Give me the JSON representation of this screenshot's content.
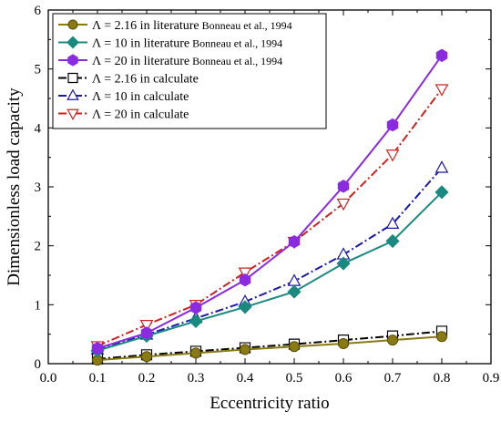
{
  "chart_data": {
    "type": "line",
    "xlabel": "Eccentricity ratio",
    "ylabel": "Dimensionless load capacity",
    "xlim": [
      0.0,
      0.9
    ],
    "ylim": [
      0,
      6
    ],
    "xticks": [
      "0.0",
      "0.1",
      "0.2",
      "0.3",
      "0.4",
      "0.5",
      "0.6",
      "0.7",
      "0.8",
      "0.9"
    ],
    "yticks": [
      "0",
      "1",
      "2",
      "3",
      "4",
      "5",
      "6"
    ],
    "grid": false,
    "legend_position": "top-left",
    "x": [
      0.1,
      0.2,
      0.3,
      0.4,
      0.5,
      0.6,
      0.7,
      0.8
    ],
    "series": [
      {
        "name": "Λ = 2.16 in literature",
        "name_suffix": "Bonneau et al., 1994",
        "values": [
          0.06,
          0.12,
          0.18,
          0.24,
          0.29,
          0.34,
          0.4,
          0.46
        ],
        "color": "#8a7a12",
        "marker": "circle",
        "marker_filled": true,
        "line_style": "solid"
      },
      {
        "name": "Λ = 10 in literature",
        "name_suffix": "Bonneau et al., 1994",
        "values": [
          0.22,
          0.47,
          0.72,
          0.96,
          1.22,
          1.7,
          2.08,
          2.91
        ],
        "color": "#1a8a80",
        "marker": "diamond",
        "marker_filled": true,
        "line_style": "solid"
      },
      {
        "name": "Λ = 20 in literature",
        "name_suffix": "Bonneau et al., 1994",
        "values": [
          0.26,
          0.52,
          0.95,
          1.42,
          2.07,
          3.01,
          4.05,
          5.23
        ],
        "color": "#8a2be2",
        "marker": "hexagon",
        "marker_filled": true,
        "line_style": "solid"
      },
      {
        "name": "Λ = 2.16 in calculate",
        "values": [
          0.08,
          0.15,
          0.21,
          0.27,
          0.33,
          0.4,
          0.47,
          0.55
        ],
        "color": "#000000",
        "marker": "square",
        "marker_filled": false,
        "line_style": "dashdot"
      },
      {
        "name": "Λ = 10 in calculate",
        "values": [
          0.24,
          0.49,
          0.77,
          1.05,
          1.4,
          1.85,
          2.37,
          3.32
        ],
        "color": "#1a1aa8",
        "marker": "triangle-up",
        "marker_filled": false,
        "line_style": "dashdot"
      },
      {
        "name": "Λ = 20 in calculate",
        "values": [
          0.3,
          0.66,
          1.0,
          1.55,
          2.07,
          2.72,
          3.55,
          4.66
        ],
        "color": "#d02020",
        "marker": "triangle-down",
        "marker_filled": false,
        "line_style": "dashdot"
      }
    ]
  }
}
